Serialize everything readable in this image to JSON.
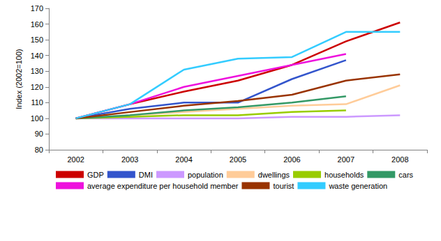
{
  "chart_data": {
    "type": "line",
    "y_label": "Index (2002=100)",
    "categories": [
      "2002",
      "2003",
      "2004",
      "2005",
      "2006",
      "2007",
      "2008"
    ],
    "ylim": [
      80,
      170
    ],
    "yticks": [
      80,
      90,
      100,
      110,
      120,
      130,
      140,
      150,
      160,
      170
    ],
    "grid": false,
    "legend": "bottom",
    "series": [
      {
        "name": "GDP",
        "color": "#cc0000",
        "values": [
          100,
          109,
          117,
          124,
          134,
          149,
          161
        ]
      },
      {
        "name": "DMI",
        "color": "#3355cc",
        "values": [
          100,
          106,
          110,
          110,
          125,
          137,
          null
        ]
      },
      {
        "name": "population",
        "color": "#cc99ff",
        "values": [
          100,
          100,
          100,
          100,
          101,
          101,
          102
        ]
      },
      {
        "name": "dwellings",
        "color": "#ffcc99",
        "values": [
          100,
          102,
          104,
          106,
          108,
          109,
          121
        ]
      },
      {
        "name": "households",
        "color": "#99cc00",
        "values": [
          100,
          101,
          102,
          102,
          104,
          105,
          null
        ]
      },
      {
        "name": "cars",
        "color": "#339966",
        "values": [
          100,
          102,
          105,
          107,
          110,
          114,
          null
        ]
      },
      {
        "name": "average expenditure per household member",
        "color": "#ee11dd",
        "values": [
          100,
          109,
          120,
          127,
          134,
          141,
          null
        ]
      },
      {
        "name": "tourist",
        "color": "#993300",
        "values": [
          100,
          104,
          108,
          111,
          115,
          124,
          128
        ]
      },
      {
        "name": "waste generation",
        "color": "#33ccff",
        "values": [
          100,
          109,
          131,
          138,
          139,
          155,
          155
        ]
      }
    ]
  }
}
